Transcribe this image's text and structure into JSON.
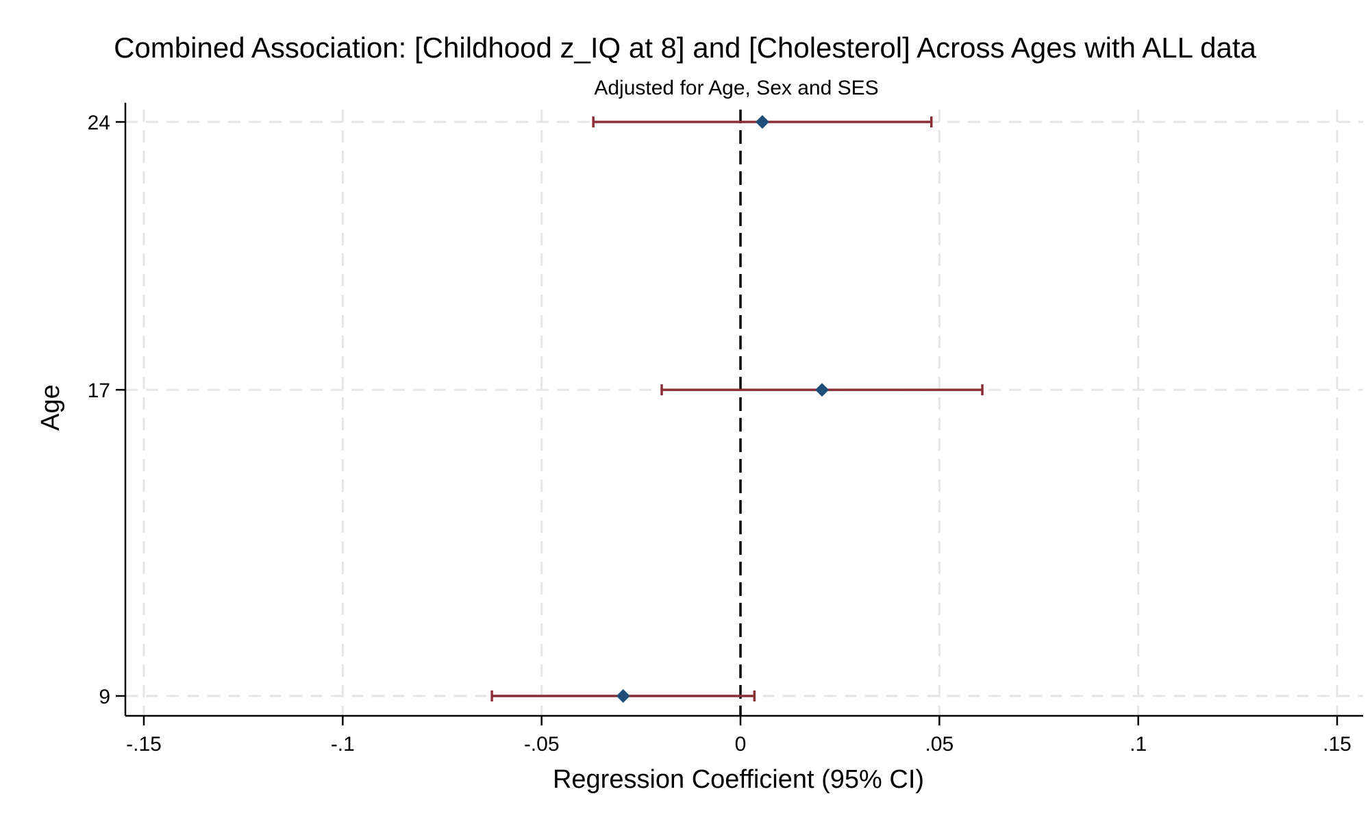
{
  "chart_data": {
    "type": "scatter",
    "title": "Combined Association: [Childhood z_IQ at 8] and [Cholesterol] Across Ages with ALL data",
    "subtitle": "Adjusted for Age, Sex and SES",
    "xlabel": "Regression Coefficient (95% CI)",
    "ylabel": "Age",
    "xlim": [
      -0.15,
      0.15
    ],
    "ylim": [
      9,
      24
    ],
    "x_ticks": [
      -0.15,
      -0.1,
      -0.05,
      0,
      0.05,
      0.1,
      0.15
    ],
    "x_tick_labels": [
      "-.15",
      "-.1",
      "-.05",
      "0",
      ".05",
      ".1",
      ".15"
    ],
    "y_ticks": [
      9,
      17,
      24
    ],
    "y_tick_labels": [
      "9",
      "17",
      "24"
    ],
    "grid": true,
    "reference_line_x": 0,
    "series": [
      {
        "points": [
          {
            "age": 24,
            "estimate": 0.0055,
            "ci_low": -0.037,
            "ci_high": 0.048
          },
          {
            "age": 17,
            "estimate": 0.0205,
            "ci_low": -0.0198,
            "ci_high": 0.0608
          },
          {
            "age": 9,
            "estimate": -0.0295,
            "ci_low": -0.0625,
            "ci_high": 0.0035
          }
        ]
      }
    ],
    "colors": {
      "marker": "#1f4e79",
      "ci_bar": "#8b2e35",
      "grid": "#e6e6e6",
      "axis": "#000000",
      "reference_line": "#000000"
    }
  }
}
